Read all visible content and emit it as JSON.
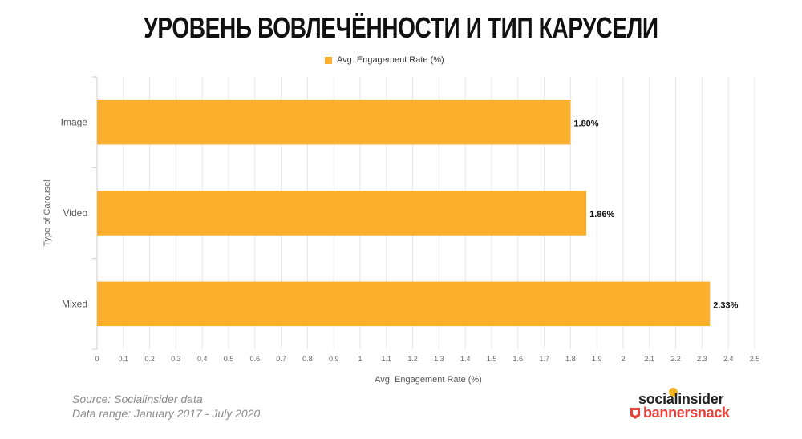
{
  "title": "УРОВЕНЬ ВОВЛЕЧЁННОСТИ И ТИП КАРУСЕЛИ",
  "colors": {
    "bar": "#fbaf2c",
    "grid": "#e6e6e6",
    "text": "#333333",
    "brand_red": "#e8403a"
  },
  "legend": {
    "label": "Avg. Engagement Rate (%)"
  },
  "chart_data": {
    "type": "bar",
    "orientation": "horizontal",
    "categories": [
      "Image",
      "Video",
      "Mixed"
    ],
    "series": [
      {
        "name": "Avg. Engagement Rate (%)",
        "values": [
          1.8,
          1.86,
          2.33
        ]
      }
    ],
    "data_labels": [
      "1.80%",
      "1.86%",
      "2.33%"
    ],
    "xlabel": "Avg. Engagement Rate (%)",
    "ylabel": "Type of Carousel",
    "xlim": [
      0,
      2.5
    ],
    "xticks": [
      "0",
      "0.1",
      "0.2",
      "0.3",
      "0.4",
      "0.5",
      "0.6",
      "0.7",
      "0.8",
      "0.9",
      "1",
      "1.1",
      "1.2",
      "1.3",
      "1.4",
      "1.5",
      "1.6",
      "1.7",
      "1.8",
      "1.9",
      "2",
      "2.1",
      "2.2",
      "2.3",
      "2.4",
      "2.5"
    ],
    "grid": true,
    "legend_position": "top-center"
  },
  "footer": {
    "source": "Source: Socialinsider data",
    "range": "Data range: January 2017 - July 2020"
  },
  "brands": {
    "socialinsider": "socialinsider",
    "bannersnack": "bannersnack"
  }
}
